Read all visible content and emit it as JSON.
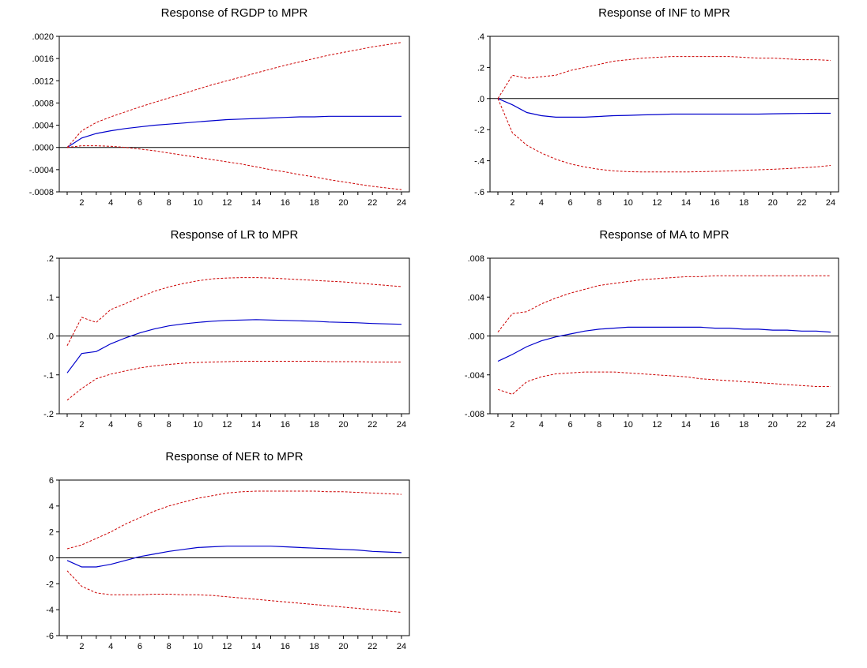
{
  "chart_data": [
    {
      "type": "line",
      "title": "Response of RGDP to MPR",
      "x": [
        1,
        2,
        3,
        4,
        5,
        6,
        7,
        8,
        9,
        10,
        11,
        12,
        13,
        14,
        15,
        16,
        17,
        18,
        19,
        20,
        21,
        22,
        23,
        24
      ],
      "xticks": [
        "2",
        "4",
        "6",
        "8",
        "10",
        "12",
        "14",
        "16",
        "18",
        "20",
        "22",
        "24"
      ],
      "ylim": [
        -0.0008,
        0.002
      ],
      "yticks": [
        ".0020",
        ".0016",
        ".0012",
        ".0008",
        ".0004",
        ".0000",
        "-.0004",
        "-.0008"
      ],
      "ytick_values": [
        0.002,
        0.0016,
        0.0012,
        0.0008,
        0.0004,
        0,
        -0.0004,
        -0.0008
      ],
      "series": [
        {
          "name": "response",
          "values": [
            0.0,
            0.00017,
            0.00025,
            0.0003,
            0.00034,
            0.00037,
            0.0004,
            0.00042,
            0.00044,
            0.00046,
            0.00048,
            0.0005,
            0.00051,
            0.00052,
            0.00053,
            0.00054,
            0.00055,
            0.00055,
            0.00056,
            0.00056,
            0.00056,
            0.00056,
            0.00056,
            0.00056
          ]
        },
        {
          "name": "upper",
          "values": [
            0.0,
            0.0003,
            0.00045,
            0.00055,
            0.00064,
            0.00073,
            0.00081,
            0.00089,
            0.00097,
            0.00105,
            0.00113,
            0.0012,
            0.00127,
            0.00134,
            0.00141,
            0.00148,
            0.00154,
            0.0016,
            0.00166,
            0.00171,
            0.00176,
            0.00181,
            0.00185,
            0.00189
          ]
        },
        {
          "name": "lower",
          "values": [
            0.0,
            3e-05,
            3e-05,
            2e-05,
            0.0,
            -3e-05,
            -6e-05,
            -0.0001,
            -0.00014,
            -0.00018,
            -0.00022,
            -0.00026,
            -0.0003,
            -0.00035,
            -0.0004,
            -0.00044,
            -0.00049,
            -0.00053,
            -0.00058,
            -0.00062,
            -0.00066,
            -0.0007,
            -0.00073,
            -0.00076
          ]
        }
      ]
    },
    {
      "type": "line",
      "title": "Response of INF to MPR",
      "x": [
        1,
        2,
        3,
        4,
        5,
        6,
        7,
        8,
        9,
        10,
        11,
        12,
        13,
        14,
        15,
        16,
        17,
        18,
        19,
        20,
        21,
        22,
        23,
        24
      ],
      "xticks": [
        "2",
        "4",
        "6",
        "8",
        "10",
        "12",
        "14",
        "16",
        "18",
        "20",
        "22",
        "24"
      ],
      "ylim": [
        -0.6,
        0.4
      ],
      "yticks": [
        ".4",
        ".2",
        ".0",
        "-.2",
        "-.4",
        "-.6"
      ],
      "ytick_values": [
        0.4,
        0.2,
        0,
        -0.2,
        -0.4,
        -0.6
      ],
      "series": [
        {
          "name": "response",
          "values": [
            0.0,
            -0.04,
            -0.09,
            -0.11,
            -0.12,
            -0.12,
            -0.12,
            -0.115,
            -0.11,
            -0.108,
            -0.105,
            -0.103,
            -0.1,
            -0.1,
            -0.1,
            -0.1,
            -0.1,
            -0.1,
            -0.1,
            -0.098,
            -0.097,
            -0.096,
            -0.095,
            -0.095
          ]
        },
        {
          "name": "upper",
          "values": [
            0.0,
            0.15,
            0.13,
            0.14,
            0.15,
            0.18,
            0.2,
            0.22,
            0.24,
            0.25,
            0.26,
            0.265,
            0.27,
            0.27,
            0.27,
            0.27,
            0.27,
            0.265,
            0.26,
            0.26,
            0.255,
            0.25,
            0.25,
            0.245
          ]
        },
        {
          "name": "lower",
          "values": [
            0.0,
            -0.22,
            -0.3,
            -0.35,
            -0.39,
            -0.42,
            -0.44,
            -0.455,
            -0.465,
            -0.47,
            -0.472,
            -0.472,
            -0.472,
            -0.472,
            -0.47,
            -0.468,
            -0.465,
            -0.462,
            -0.458,
            -0.455,
            -0.45,
            -0.445,
            -0.44,
            -0.43
          ]
        }
      ]
    },
    {
      "type": "line",
      "title": "Response of LR to MPR",
      "x": [
        1,
        2,
        3,
        4,
        5,
        6,
        7,
        8,
        9,
        10,
        11,
        12,
        13,
        14,
        15,
        16,
        17,
        18,
        19,
        20,
        21,
        22,
        23,
        24
      ],
      "xticks": [
        "2",
        "4",
        "6",
        "8",
        "10",
        "12",
        "14",
        "16",
        "18",
        "20",
        "22",
        "24"
      ],
      "ylim": [
        -0.2,
        0.2
      ],
      "yticks": [
        ".2",
        ".1",
        ".0",
        "-.1",
        "-.2"
      ],
      "ytick_values": [
        0.2,
        0.1,
        0,
        -0.1,
        -0.2
      ],
      "series": [
        {
          "name": "response",
          "values": [
            -0.095,
            -0.045,
            -0.04,
            -0.02,
            -0.005,
            0.008,
            0.018,
            0.026,
            0.031,
            0.035,
            0.038,
            0.04,
            0.041,
            0.042,
            0.041,
            0.04,
            0.039,
            0.038,
            0.036,
            0.035,
            0.034,
            0.032,
            0.031,
            0.03
          ]
        },
        {
          "name": "upper",
          "values": [
            -0.025,
            0.048,
            0.035,
            0.068,
            0.083,
            0.1,
            0.115,
            0.126,
            0.135,
            0.142,
            0.147,
            0.149,
            0.15,
            0.15,
            0.149,
            0.147,
            0.145,
            0.143,
            0.141,
            0.139,
            0.136,
            0.133,
            0.13,
            0.127
          ]
        },
        {
          "name": "lower",
          "values": [
            -0.165,
            -0.135,
            -0.11,
            -0.098,
            -0.09,
            -0.082,
            -0.077,
            -0.073,
            -0.07,
            -0.068,
            -0.067,
            -0.066,
            -0.065,
            -0.065,
            -0.065,
            -0.065,
            -0.065,
            -0.065,
            -0.066,
            -0.066,
            -0.066,
            -0.067,
            -0.067,
            -0.067
          ]
        }
      ]
    },
    {
      "type": "line",
      "title": "Response of MA to MPR",
      "x": [
        1,
        2,
        3,
        4,
        5,
        6,
        7,
        8,
        9,
        10,
        11,
        12,
        13,
        14,
        15,
        16,
        17,
        18,
        19,
        20,
        21,
        22,
        23,
        24
      ],
      "xticks": [
        "2",
        "4",
        "6",
        "8",
        "10",
        "12",
        "14",
        "16",
        "18",
        "20",
        "22",
        "24"
      ],
      "ylim": [
        -0.008,
        0.008
      ],
      "yticks": [
        ".008",
        ".004",
        ".000",
        "-.004",
        "-.008"
      ],
      "ytick_values": [
        0.008,
        0.004,
        0,
        -0.004,
        -0.008
      ],
      "series": [
        {
          "name": "response",
          "values": [
            -0.0026,
            -0.0019,
            -0.0011,
            -0.0005,
            -0.0001,
            0.0002,
            0.0005,
            0.0007,
            0.0008,
            0.0009,
            0.0009,
            0.0009,
            0.0009,
            0.0009,
            0.0009,
            0.0008,
            0.0008,
            0.0007,
            0.0007,
            0.0006,
            0.0006,
            0.0005,
            0.0005,
            0.0004
          ]
        },
        {
          "name": "upper",
          "values": [
            0.0004,
            0.0023,
            0.0025,
            0.0033,
            0.0039,
            0.0044,
            0.0048,
            0.0052,
            0.0054,
            0.0056,
            0.0058,
            0.0059,
            0.006,
            0.0061,
            0.0061,
            0.0062,
            0.0062,
            0.0062,
            0.0062,
            0.0062,
            0.0062,
            0.0062,
            0.0062,
            0.0062
          ]
        },
        {
          "name": "lower",
          "values": [
            -0.0055,
            -0.006,
            -0.0047,
            -0.0042,
            -0.0039,
            -0.0038,
            -0.0037,
            -0.0037,
            -0.0037,
            -0.0038,
            -0.0039,
            -0.004,
            -0.0041,
            -0.0042,
            -0.0044,
            -0.0045,
            -0.0046,
            -0.0047,
            -0.0048,
            -0.0049,
            -0.005,
            -0.0051,
            -0.0052,
            -0.0052
          ]
        }
      ]
    },
    {
      "type": "line",
      "title": "Response of NER to MPR",
      "x": [
        1,
        2,
        3,
        4,
        5,
        6,
        7,
        8,
        9,
        10,
        11,
        12,
        13,
        14,
        15,
        16,
        17,
        18,
        19,
        20,
        21,
        22,
        23,
        24
      ],
      "xticks": [
        "2",
        "4",
        "6",
        "8",
        "10",
        "12",
        "14",
        "16",
        "18",
        "20",
        "22",
        "24"
      ],
      "ylim": [
        -6,
        6
      ],
      "yticks": [
        "6",
        "4",
        "2",
        "0",
        "-2",
        "-4",
        "-6"
      ],
      "ytick_values": [
        6,
        4,
        2,
        0,
        -2,
        -4,
        -6
      ],
      "series": [
        {
          "name": "response",
          "values": [
            -0.2,
            -0.7,
            -0.7,
            -0.5,
            -0.2,
            0.1,
            0.3,
            0.5,
            0.65,
            0.8,
            0.85,
            0.9,
            0.9,
            0.9,
            0.9,
            0.85,
            0.8,
            0.75,
            0.7,
            0.65,
            0.6,
            0.5,
            0.45,
            0.4
          ]
        },
        {
          "name": "upper",
          "values": [
            0.7,
            1.0,
            1.5,
            2.0,
            2.6,
            3.1,
            3.6,
            4.0,
            4.3,
            4.6,
            4.8,
            5.0,
            5.1,
            5.15,
            5.15,
            5.15,
            5.15,
            5.15,
            5.1,
            5.1,
            5.05,
            5.0,
            4.95,
            4.9
          ]
        },
        {
          "name": "lower",
          "values": [
            -1.0,
            -2.2,
            -2.7,
            -2.85,
            -2.85,
            -2.85,
            -2.8,
            -2.8,
            -2.85,
            -2.85,
            -2.9,
            -3.0,
            -3.1,
            -3.2,
            -3.3,
            -3.4,
            -3.5,
            -3.6,
            -3.7,
            -3.8,
            -3.9,
            -4.0,
            -4.1,
            -4.2
          ]
        }
      ]
    }
  ],
  "colors": {
    "response": "#0000cc",
    "band": "#cc0000",
    "axis": "#000000"
  }
}
